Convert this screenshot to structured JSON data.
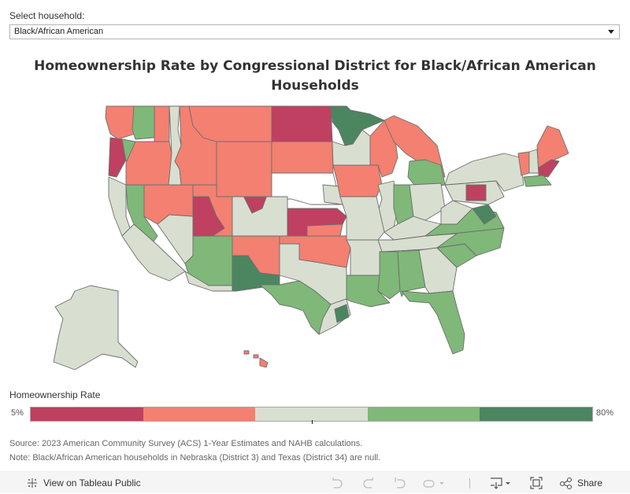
{
  "filter": {
    "label": "Select household:",
    "selected": "Black/African American"
  },
  "title": {
    "line1": "Homeownership Rate by Congressional District for Black/African American",
    "line2": "Households"
  },
  "colors": {
    "very_low": "#bf4060",
    "low": "#f38071",
    "mid": "#d8dfd0",
    "high": "#7fb878",
    "very_high": "#4b8660",
    "null": "#ffffff",
    "border": "#6e6e6e"
  },
  "legend": {
    "title": "Homeownership Rate",
    "min_label": "5%",
    "max_label": "80%",
    "range": [
      5,
      80
    ],
    "bins": 5,
    "segments": [
      "very_low",
      "low",
      "mid",
      "high",
      "very_high"
    ]
  },
  "notes": {
    "source": "Source: 2023 American Community Survey (ACS) 1-Year Estimates and NAHB calculations.",
    "note": "Note: Black/African American households in Nebraska (District 3) and Texas (District 34) are null."
  },
  "toolbar": {
    "view_label": "View on Tableau Public",
    "share_label": "Share",
    "icons": [
      "undo-icon",
      "redo-icon",
      "revert-icon",
      "refresh-icon",
      "download-icon",
      "fullscreen-icon",
      "share-icon"
    ]
  },
  "regions": [
    {
      "name": "WA-west",
      "cls": "low"
    },
    {
      "name": "WA-central",
      "cls": "high"
    },
    {
      "name": "WA-east",
      "cls": "low"
    },
    {
      "name": "OR-coast",
      "cls": "very_low"
    },
    {
      "name": "OR-valley",
      "cls": "high"
    },
    {
      "name": "OR-east",
      "cls": "low"
    },
    {
      "name": "ID-west",
      "cls": "mid"
    },
    {
      "name": "ID-east",
      "cls": "low"
    },
    {
      "name": "MT",
      "cls": "low"
    },
    {
      "name": "ND",
      "cls": "very_low"
    },
    {
      "name": "SD",
      "cls": "low"
    },
    {
      "name": "WY",
      "cls": "low"
    },
    {
      "name": "NE-3",
      "cls": "null"
    },
    {
      "name": "NE-east",
      "cls": "mid"
    },
    {
      "name": "CA-north",
      "cls": "mid"
    },
    {
      "name": "CA-central-valley",
      "cls": "high"
    },
    {
      "name": "CA-south",
      "cls": "mid"
    },
    {
      "name": "NV-north",
      "cls": "low"
    },
    {
      "name": "NV-south",
      "cls": "mid"
    },
    {
      "name": "UT-1",
      "cls": "very_low"
    },
    {
      "name": "UT-east",
      "cls": "low"
    },
    {
      "name": "CO-west",
      "cls": "mid"
    },
    {
      "name": "CO-north",
      "cls": "very_low"
    },
    {
      "name": "KS",
      "cls": "very_low"
    },
    {
      "name": "KS-south",
      "cls": "low"
    },
    {
      "name": "AZ-north",
      "cls": "high"
    },
    {
      "name": "AZ-south",
      "cls": "mid"
    },
    {
      "name": "NM-north",
      "cls": "low"
    },
    {
      "name": "NM-south",
      "cls": "very_high"
    },
    {
      "name": "OK",
      "cls": "low"
    },
    {
      "name": "TX-west",
      "cls": "high"
    },
    {
      "name": "TX-north",
      "cls": "mid"
    },
    {
      "name": "TX-east",
      "cls": "mid"
    },
    {
      "name": "TX-houston",
      "cls": "very_high"
    },
    {
      "name": "MN-north",
      "cls": "very_high"
    },
    {
      "name": "MN-south",
      "cls": "mid"
    },
    {
      "name": "IA",
      "cls": "low"
    },
    {
      "name": "WI",
      "cls": "low"
    },
    {
      "name": "MI-upper",
      "cls": "low"
    },
    {
      "name": "MI-lower",
      "cls": "high"
    },
    {
      "name": "IL",
      "cls": "mid"
    },
    {
      "name": "MO",
      "cls": "mid"
    },
    {
      "name": "AR",
      "cls": "mid"
    },
    {
      "name": "LA",
      "cls": "high"
    },
    {
      "name": "MS",
      "cls": "high"
    },
    {
      "name": "AL",
      "cls": "high"
    },
    {
      "name": "GA",
      "cls": "mid"
    },
    {
      "name": "FL",
      "cls": "high"
    },
    {
      "name": "TN",
      "cls": "mid"
    },
    {
      "name": "KY",
      "cls": "mid"
    },
    {
      "name": "IN",
      "cls": "high"
    },
    {
      "name": "OH",
      "cls": "mid"
    },
    {
      "name": "WV",
      "cls": "mid"
    },
    {
      "name": "VA",
      "cls": "high"
    },
    {
      "name": "NC",
      "cls": "high"
    },
    {
      "name": "SC",
      "cls": "high"
    },
    {
      "name": "PA-central",
      "cls": "very_low"
    },
    {
      "name": "PA",
      "cls": "mid"
    },
    {
      "name": "NY",
      "cls": "mid"
    },
    {
      "name": "VT",
      "cls": "low"
    },
    {
      "name": "NH",
      "cls": "mid"
    },
    {
      "name": "ME",
      "cls": "low"
    },
    {
      "name": "ME-south",
      "cls": "very_low"
    },
    {
      "name": "MA",
      "cls": "high"
    },
    {
      "name": "MD",
      "cls": "very_high"
    },
    {
      "name": "AK",
      "cls": "mid"
    },
    {
      "name": "HI",
      "cls": "low"
    }
  ]
}
